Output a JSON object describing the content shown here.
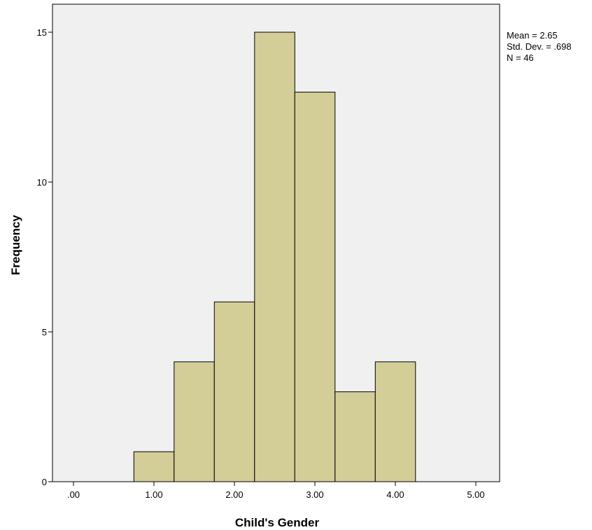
{
  "chart_data": {
    "type": "bar",
    "subtype": "histogram",
    "title": "",
    "xlabel": "Child's Gender",
    "ylabel": "Frequency",
    "bin_width": 0.5,
    "bins": [
      {
        "x0": 0.75,
        "x1": 1.25,
        "count": 1
      },
      {
        "x0": 1.25,
        "x1": 1.75,
        "count": 4
      },
      {
        "x0": 1.75,
        "x1": 2.25,
        "count": 6
      },
      {
        "x0": 2.25,
        "x1": 2.75,
        "count": 15
      },
      {
        "x0": 2.75,
        "x1": 3.25,
        "count": 13
      },
      {
        "x0": 3.25,
        "x1": 3.75,
        "count": 3
      },
      {
        "x0": 3.75,
        "x1": 4.25,
        "count": 4
      }
    ],
    "xlim": [
      -0.35,
      5.3
    ],
    "ylim": [
      0,
      16
    ],
    "x_ticks": [
      0,
      1,
      2,
      3,
      4,
      5
    ],
    "x_tick_labels": [
      ".00",
      "1.00",
      "2.00",
      "3.00",
      "4.00",
      "5.00"
    ],
    "y_ticks": [
      0,
      5,
      10,
      15
    ],
    "y_tick_labels": [
      "0",
      "5",
      "10",
      "15"
    ],
    "grid": false,
    "colors": {
      "bar_fill": "#D3CE97",
      "bar_stroke": "#000000",
      "plot_background": "#F0F0F0",
      "axis": "#000000"
    },
    "stats": {
      "position": "top-right",
      "lines": [
        "Mean = 2.65",
        "Std. Dev. = .698",
        "N = 46"
      ]
    }
  }
}
